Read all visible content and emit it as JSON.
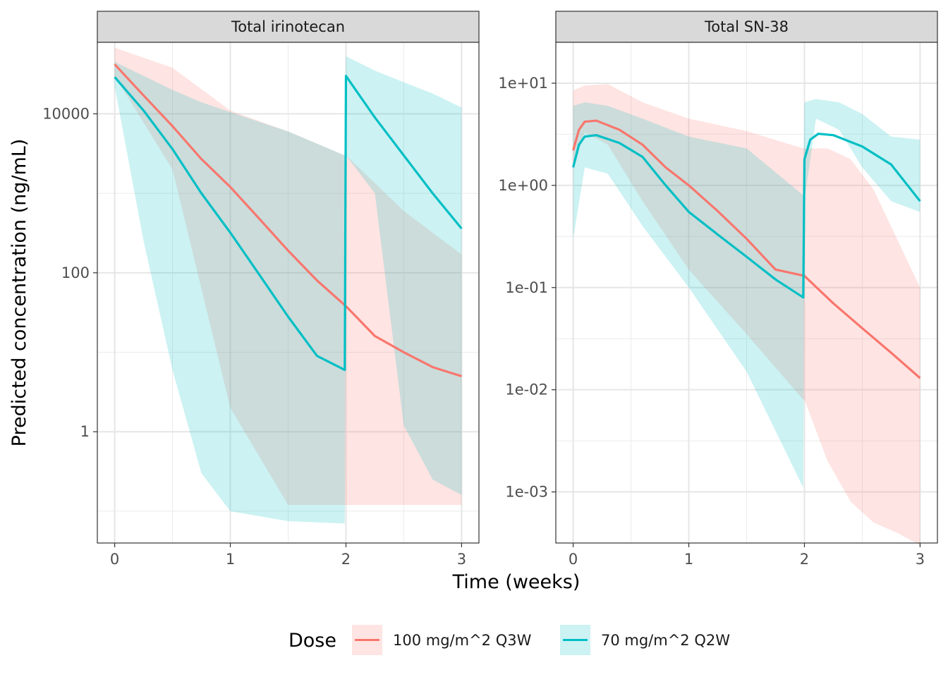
{
  "chart_data": {
    "type": "line",
    "y_axis_title": "Predicted concentration (ng/mL)",
    "x_axis_title": "Time (weeks)",
    "y_scale": "log10",
    "grid": true,
    "legend": {
      "position": "bottom",
      "title": "Dose",
      "entries": [
        {
          "label": "100 mg/m^2 Q3W",
          "color": "#F8766D"
        },
        {
          "label": "70 mg/m^2 Q2W",
          "color": "#00BFC4"
        }
      ]
    },
    "panels": [
      {
        "title": "Total irinotecan",
        "xlim": [
          -0.15,
          3.15
        ],
        "ylim_log10": [
          -1.4,
          4.9
        ],
        "x_ticks": [
          0,
          1,
          2,
          3
        ],
        "x_tick_labels": [
          "0",
          "1",
          "2",
          "3"
        ],
        "y_ticks": [
          1,
          100,
          10000
        ],
        "y_tick_labels": [
          "1",
          "100",
          "10000"
        ],
        "series": [
          {
            "name": "100 mg/m^2 Q3W",
            "color": "#F8766D",
            "line": [
              [
                0,
                42000
              ],
              [
                0.25,
                17000
              ],
              [
                0.5,
                7000
              ],
              [
                0.75,
                2700
              ],
              [
                1,
                1200
              ],
              [
                1.25,
                480
              ],
              [
                1.5,
                190
              ],
              [
                1.75,
                80
              ],
              [
                2,
                38
              ],
              [
                2.25,
                16
              ],
              [
                2.5,
                10
              ],
              [
                2.75,
                6.5
              ],
              [
                3,
                5
              ]
            ],
            "band": [
              [
                0,
                68000,
                30000
              ],
              [
                0.5,
                38000,
                2000
              ],
              [
                1,
                11000,
                2
              ],
              [
                1.5,
                6000,
                0.12
              ],
              [
                1.99,
                3000,
                0.12
              ],
              [
                2,
                3000,
                0.12
              ],
              [
                2.5,
                600,
                0.12
              ],
              [
                3,
                170,
                0.12
              ]
            ]
          },
          {
            "name": "70 mg/m^2 Q2W",
            "color": "#00BFC4",
            "line": [
              [
                0,
                29000
              ],
              [
                0.25,
                11000
              ],
              [
                0.5,
                3600
              ],
              [
                0.75,
                1000
              ],
              [
                1,
                320
              ],
              [
                1.25,
                95
              ],
              [
                1.5,
                28
              ],
              [
                1.75,
                9
              ],
              [
                1.99,
                6
              ],
              [
                2,
                30000
              ],
              [
                2.25,
                9000
              ],
              [
                2.5,
                3000
              ],
              [
                2.75,
                1000
              ],
              [
                3,
                360
              ]
            ],
            "band": [
              [
                0,
                45000,
                22000
              ],
              [
                0.25,
                30000,
                250
              ],
              [
                0.5,
                20000,
                6
              ],
              [
                0.75,
                14000,
                0.3
              ],
              [
                1,
                10500,
                0.1
              ],
              [
                1.5,
                6000,
                0.075
              ],
              [
                1.99,
                3000,
                0.07
              ],
              [
                2,
                53000,
                3000
              ],
              [
                2.25,
                35000,
                1000
              ],
              [
                2.5,
                25000,
                1.2
              ],
              [
                2.75,
                18000,
                0.25
              ],
              [
                3,
                12000,
                0.16
              ]
            ]
          }
        ]
      },
      {
        "title": "Total SN-38",
        "xlim": [
          -0.15,
          3.15
        ],
        "ylim_log10": [
          -3.5,
          1.4
        ],
        "x_ticks": [
          0,
          1,
          2,
          3
        ],
        "x_tick_labels": [
          "0",
          "1",
          "2",
          "3"
        ],
        "y_ticks": [
          0.001,
          0.01,
          0.1,
          1,
          10
        ],
        "y_tick_labels": [
          "1e-03",
          "1e-02",
          "1e-01",
          "1e+00",
          "1e+01"
        ],
        "series": [
          {
            "name": "100 mg/m^2 Q3W",
            "color": "#F8766D",
            "line": [
              [
                0,
                2.2
              ],
              [
                0.05,
                3.5
              ],
              [
                0.1,
                4.2
              ],
              [
                0.2,
                4.3
              ],
              [
                0.4,
                3.5
              ],
              [
                0.6,
                2.5
              ],
              [
                0.8,
                1.5
              ],
              [
                1,
                1
              ],
              [
                1.25,
                0.56
              ],
              [
                1.5,
                0.3
              ],
              [
                1.75,
                0.15
              ],
              [
                2,
                0.13
              ],
              [
                2.25,
                0.07
              ],
              [
                2.5,
                0.04
              ],
              [
                2.75,
                0.023
              ],
              [
                3,
                0.013
              ]
            ],
            "band": [
              [
                0,
                8.5,
                1.4
              ],
              [
                0.1,
                9.5,
                3.3
              ],
              [
                0.3,
                9.8,
                2.5
              ],
              [
                0.6,
                6.5,
                0.7
              ],
              [
                1,
                4.5,
                0.15
              ],
              [
                1.5,
                3.4,
                0.035
              ],
              [
                1.99,
                2.3,
                0.008
              ],
              [
                2,
                2.3,
                0.008
              ],
              [
                2.2,
                2.3,
                0.002
              ],
              [
                2.4,
                1.8,
                0.0008
              ],
              [
                2.6,
                0.9,
                0.0005
              ],
              [
                2.8,
                0.3,
                0.0004
              ],
              [
                3,
                0.1,
                0.0003
              ]
            ]
          },
          {
            "name": "70 mg/m^2 Q2W",
            "color": "#00BFC4",
            "line": [
              [
                0,
                1.5
              ],
              [
                0.05,
                2.5
              ],
              [
                0.1,
                3.0
              ],
              [
                0.2,
                3.1
              ],
              [
                0.4,
                2.6
              ],
              [
                0.6,
                1.9
              ],
              [
                0.8,
                1.0
              ],
              [
                1,
                0.55
              ],
              [
                1.25,
                0.33
              ],
              [
                1.5,
                0.2
              ],
              [
                1.75,
                0.12
              ],
              [
                1.99,
                0.08
              ],
              [
                2,
                1.8
              ],
              [
                2.05,
                2.8
              ],
              [
                2.12,
                3.2
              ],
              [
                2.25,
                3.1
              ],
              [
                2.5,
                2.4
              ],
              [
                2.75,
                1.6
              ],
              [
                3,
                0.7
              ]
            ],
            "band": [
              [
                0,
                6,
                0.3
              ],
              [
                0.1,
                6.5,
                1.5
              ],
              [
                0.3,
                6,
                1.3
              ],
              [
                0.6,
                4.5,
                0.4
              ],
              [
                1,
                3,
                0.1
              ],
              [
                1.5,
                2.3,
                0.015
              ],
              [
                1.99,
                0.8,
                0.0011
              ],
              [
                2,
                6.5,
                0.7
              ],
              [
                2.1,
                7,
                4.5
              ],
              [
                2.3,
                6.5,
                3.5
              ],
              [
                2.5,
                5,
                1.5
              ],
              [
                2.75,
                3,
                0.7
              ],
              [
                3,
                2.8,
                0.55
              ]
            ]
          }
        ]
      }
    ]
  }
}
